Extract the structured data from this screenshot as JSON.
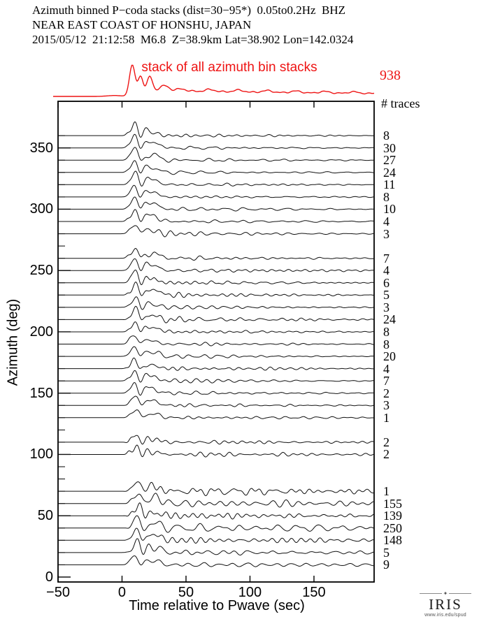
{
  "title": {
    "line1": "Azimuth binned P−coda stacks (dist=30−95*)  0.05to0.2Hz  BHZ",
    "line2": "NEAR EAST COAST OF HONSHU, JAPAN",
    "line3": "2015/05/12  21:12:58  M6.8  Z=38.9km Lat=38.902 Lon=142.0324"
  },
  "stack": {
    "label": "stack of all azimuth bin stacks",
    "total": "938"
  },
  "counts_header": "# traces",
  "axes": {
    "ylabel": "Azimuth (deg)",
    "xlabel": "Time relative to Pwave (sec)"
  },
  "logo": {
    "name": "IRIS",
    "url": "www.iris.edu/spud",
    "ornament": "✦"
  },
  "colors": {
    "stack": "#ee1414",
    "trace": "#101010",
    "frame": "#000000",
    "tick": "#000000"
  },
  "chart_data": {
    "type": "line",
    "title": "Azimuth binned P−coda stacks (dist=30−95*) 0.05to0.2Hz BHZ",
    "event": "NEAR EAST COAST OF HONSHU, JAPAN 2015/05/12 21:12:58 M6.8 Z=38.9km Lat=38.902 Lon=142.0324",
    "xlabel": "Time relative to Pwave (sec)",
    "ylabel": "Azimuth (deg)",
    "xlim": [
      -50,
      197
    ],
    "ylim": [
      -4,
      388
    ],
    "grid": false,
    "xticks": [
      {
        "v": -50,
        "label": "−50"
      },
      {
        "v": 0,
        "label": "0"
      },
      {
        "v": 50,
        "label": "50"
      },
      {
        "v": 100,
        "label": "100"
      },
      {
        "v": 150,
        "label": "150"
      }
    ],
    "yticks": [
      {
        "v": 0,
        "label": "0"
      },
      {
        "v": 50,
        "label": "50"
      },
      {
        "v": 100,
        "label": "100"
      },
      {
        "v": 150,
        "label": "150"
      },
      {
        "v": 200,
        "label": "200"
      },
      {
        "v": 250,
        "label": "250"
      },
      {
        "v": 300,
        "label": "300"
      },
      {
        "v": 350,
        "label": "350"
      }
    ],
    "stack": {
      "label": "stack of all azimuth bin stacks",
      "total_traces": 938,
      "baseline_y": 138,
      "peaks": [
        [
          8,
          2.2,
          45
        ],
        [
          14.5,
          2.0,
          28
        ],
        [
          21.5,
          2.2,
          25
        ],
        [
          33,
          3.6,
          8
        ]
      ],
      "tail_level": 9.5,
      "tail_decay": 260
    },
    "bins": [
      {
        "azimuth": 360,
        "traces": 8,
        "peak": 10.0,
        "tp": 10,
        "coda": 1.6,
        "decay": 110,
        "seed": 11
      },
      {
        "azimuth": 350,
        "traces": 30,
        "peak": 10.5,
        "tp": 10,
        "coda": 1.5,
        "decay": 120,
        "seed": 12
      },
      {
        "azimuth": 340,
        "traces": 27,
        "peak": 10.0,
        "tp": 10,
        "coda": 1.6,
        "decay": 120,
        "seed": 13
      },
      {
        "azimuth": 330,
        "traces": 24,
        "peak": 10.0,
        "tp": 10,
        "coda": 1.7,
        "decay": 120,
        "seed": 14
      },
      {
        "azimuth": 320,
        "traces": 11,
        "peak": 10.0,
        "tp": 10,
        "coda": 1.8,
        "decay": 110,
        "seed": 15
      },
      {
        "azimuth": 310,
        "traces": 8,
        "peak": 9.5,
        "tp": 10,
        "coda": 2.0,
        "decay": 110,
        "seed": 16
      },
      {
        "azimuth": 300,
        "traces": 10,
        "peak": 10.5,
        "tp": 10,
        "coda": 2.2,
        "decay": 100,
        "seed": 17
      },
      {
        "azimuth": 290,
        "traces": 4,
        "peak": 9.5,
        "tp": 10,
        "coda": 2.2,
        "decay": 100,
        "seed": 18
      },
      {
        "azimuth": 280,
        "traces": 3,
        "peak": 8.5,
        "tp": 11,
        "coda": 2.0,
        "decay": 100,
        "seed": 19
      },
      {
        "azimuth": 260,
        "traces": 7,
        "peak": 9.0,
        "tp": 10,
        "coda": 1.8,
        "decay": 130,
        "seed": 21
      },
      {
        "azimuth": 250,
        "traces": 4,
        "peak": 10.0,
        "tp": 10,
        "coda": 2.0,
        "decay": 130,
        "seed": 22
      },
      {
        "azimuth": 240,
        "traces": 6,
        "peak": 10.5,
        "tp": 10,
        "coda": 1.9,
        "decay": 130,
        "seed": 23
      },
      {
        "azimuth": 230,
        "traces": 5,
        "peak": 9.0,
        "tp": 11,
        "coda": 1.7,
        "decay": 140,
        "seed": 24
      },
      {
        "azimuth": 220,
        "traces": 3,
        "peak": 8.0,
        "tp": 11,
        "coda": 2.3,
        "decay": 140,
        "seed": 25
      },
      {
        "azimuth": 210,
        "traces": 24,
        "peak": 9.0,
        "tp": 11,
        "coda": 2.4,
        "decay": 130,
        "seed": 26
      },
      {
        "azimuth": 200,
        "traces": 8,
        "peak": 8.5,
        "tp": 11,
        "coda": 2.0,
        "decay": 130,
        "seed": 27
      },
      {
        "azimuth": 190,
        "traces": 8,
        "peak": 8.0,
        "tp": 10,
        "coda": 1.9,
        "decay": 130,
        "seed": 28
      },
      {
        "azimuth": 180,
        "traces": 20,
        "peak": 8.5,
        "tp": 10,
        "coda": 1.7,
        "decay": 130,
        "seed": 29
      },
      {
        "azimuth": 170,
        "traces": 4,
        "peak": 8.0,
        "tp": 10,
        "coda": 1.8,
        "decay": 130,
        "seed": 30
      },
      {
        "azimuth": 160,
        "traces": 7,
        "peak": 8.5,
        "tp": 10,
        "coda": 1.7,
        "decay": 130,
        "seed": 31
      },
      {
        "azimuth": 150,
        "traces": 2,
        "peak": 8.0,
        "tp": 10,
        "coda": 1.5,
        "decay": 130,
        "seed": 32
      },
      {
        "azimuth": 140,
        "traces": 3,
        "peak": 8.5,
        "tp": 10,
        "coda": 1.4,
        "decay": 130,
        "seed": 33
      },
      {
        "azimuth": 130,
        "traces": 1,
        "peak": 8.0,
        "tp": 11,
        "coda": 1.6,
        "decay": 160,
        "seed": 34
      },
      {
        "azimuth": 110,
        "traces": 2,
        "peak": 6.0,
        "tp": 11,
        "coda": 2.1,
        "decay": 160,
        "seed": 36
      },
      {
        "azimuth": 100,
        "traces": 2,
        "peak": 6.5,
        "tp": 12,
        "coda": 2.2,
        "decay": 160,
        "seed": 37
      },
      {
        "azimuth": 70,
        "traces": 1,
        "peak": 9.0,
        "tp": 13,
        "coda": 2.9,
        "decay": 420,
        "seed": 41
      },
      {
        "azimuth": 60,
        "traces": 155,
        "peak": 9.5,
        "tp": 13,
        "coda": 2.8,
        "decay": 420,
        "seed": 42
      },
      {
        "azimuth": 50,
        "traces": 139,
        "peak": 9.0,
        "tp": 13,
        "coda": 2.7,
        "decay": 420,
        "seed": 43
      },
      {
        "azimuth": 40,
        "traces": 250,
        "peak": 9.0,
        "tp": 12,
        "coda": 2.6,
        "decay": 420,
        "seed": 44
      },
      {
        "azimuth": 30,
        "traces": 148,
        "peak": 9.5,
        "tp": 12,
        "coda": 2.7,
        "decay": 420,
        "seed": 45
      },
      {
        "azimuth": 20,
        "traces": 5,
        "peak": 9.0,
        "tp": 12,
        "coda": 2.2,
        "decay": 300,
        "seed": 46
      },
      {
        "azimuth": 10,
        "traces": 9,
        "peak": 8.0,
        "tp": 11,
        "coda": 1.6,
        "decay": 300,
        "seed": 47
      }
    ]
  }
}
